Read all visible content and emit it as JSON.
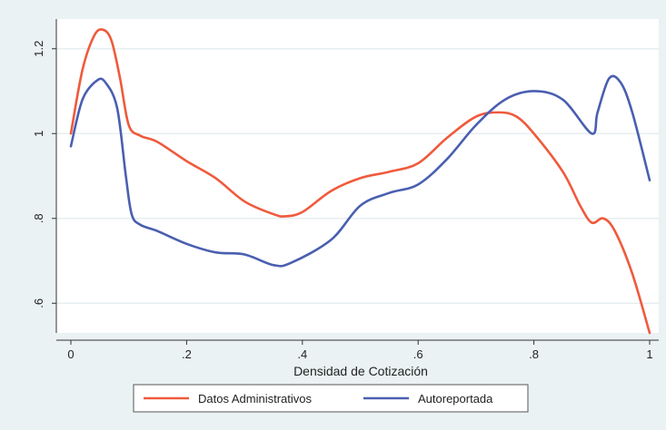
{
  "chart_data": {
    "type": "line",
    "title": "",
    "xlabel": "Densidad de Cotización",
    "ylabel": "",
    "xlim": [
      0,
      1
    ],
    "ylim": [
      0.53,
      1.27
    ],
    "grid": true,
    "legend_position": "bottom",
    "x_ticks": [
      {
        "value": 0,
        "label": "0"
      },
      {
        "value": 0.2,
        "label": ".2"
      },
      {
        "value": 0.4,
        "label": ".4"
      },
      {
        "value": 0.6,
        "label": ".6"
      },
      {
        "value": 0.8,
        "label": ".8"
      },
      {
        "value": 1,
        "label": "1"
      }
    ],
    "y_ticks": [
      {
        "value": 0.6,
        "label": ".6"
      },
      {
        "value": 0.8,
        "label": ".8"
      },
      {
        "value": 1.0,
        "label": "1"
      },
      {
        "value": 1.2,
        "label": "1.2"
      }
    ],
    "series": [
      {
        "name": "Datos Administrativos",
        "color": "#ef5a3c",
        "points": [
          [
            0,
            1.0
          ],
          [
            0.02,
            1.15
          ],
          [
            0.04,
            1.23
          ],
          [
            0.055,
            1.245
          ],
          [
            0.07,
            1.22
          ],
          [
            0.085,
            1.13
          ],
          [
            0.1,
            1.02
          ],
          [
            0.12,
            0.995
          ],
          [
            0.15,
            0.98
          ],
          [
            0.2,
            0.935
          ],
          [
            0.25,
            0.895
          ],
          [
            0.3,
            0.84
          ],
          [
            0.35,
            0.81
          ],
          [
            0.37,
            0.805
          ],
          [
            0.4,
            0.815
          ],
          [
            0.45,
            0.865
          ],
          [
            0.5,
            0.895
          ],
          [
            0.55,
            0.91
          ],
          [
            0.6,
            0.93
          ],
          [
            0.65,
            0.99
          ],
          [
            0.7,
            1.04
          ],
          [
            0.74,
            1.05
          ],
          [
            0.77,
            1.04
          ],
          [
            0.8,
            1.0
          ],
          [
            0.85,
            0.91
          ],
          [
            0.88,
            0.83
          ],
          [
            0.9,
            0.79
          ],
          [
            0.92,
            0.8
          ],
          [
            0.94,
            0.77
          ],
          [
            0.97,
            0.67
          ],
          [
            1.0,
            0.53
          ]
        ]
      },
      {
        "name": "Autoreportada",
        "color": "#4a5fb0",
        "points": [
          [
            0,
            0.97
          ],
          [
            0.02,
            1.08
          ],
          [
            0.045,
            1.125
          ],
          [
            0.06,
            1.12
          ],
          [
            0.08,
            1.06
          ],
          [
            0.095,
            0.9
          ],
          [
            0.105,
            0.81
          ],
          [
            0.12,
            0.785
          ],
          [
            0.15,
            0.77
          ],
          [
            0.2,
            0.74
          ],
          [
            0.25,
            0.72
          ],
          [
            0.3,
            0.715
          ],
          [
            0.35,
            0.69
          ],
          [
            0.38,
            0.695
          ],
          [
            0.45,
            0.75
          ],
          [
            0.5,
            0.83
          ],
          [
            0.55,
            0.86
          ],
          [
            0.6,
            0.88
          ],
          [
            0.65,
            0.94
          ],
          [
            0.7,
            1.02
          ],
          [
            0.75,
            1.08
          ],
          [
            0.8,
            1.1
          ],
          [
            0.85,
            1.08
          ],
          [
            0.9,
            1.0
          ],
          [
            0.91,
            1.05
          ],
          [
            0.93,
            1.13
          ],
          [
            0.95,
            1.12
          ],
          [
            0.97,
            1.05
          ],
          [
            1.0,
            0.89
          ]
        ]
      }
    ]
  }
}
